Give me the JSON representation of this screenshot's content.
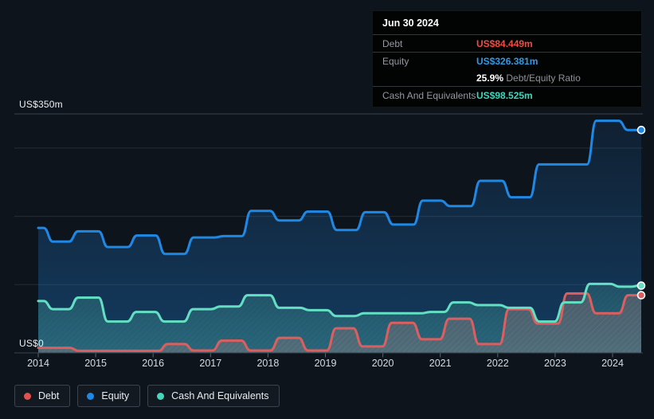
{
  "y_axis": {
    "top_label": "US$350m",
    "bottom_label": "US$0"
  },
  "x_axis": {
    "ticks": [
      "2014",
      "2015",
      "2016",
      "2017",
      "2018",
      "2019",
      "2020",
      "2021",
      "2022",
      "2023",
      "2024"
    ]
  },
  "tooltip": {
    "date": "Jun 30 2024",
    "debt_label": "Debt",
    "debt_value": "US$84.449m",
    "equity_label": "Equity",
    "equity_value": "US$326.381m",
    "ratio_value": "25.9%",
    "ratio_label": "Debt/Equity Ratio",
    "cash_label": "Cash And Equivalents",
    "cash_value": "US$98.525m"
  },
  "legend": {
    "items": [
      {
        "label": "Debt",
        "color": "#e0524e"
      },
      {
        "label": "Equity",
        "color": "#1e88e5"
      },
      {
        "label": "Cash And Equivalents",
        "color": "#44d7ba"
      }
    ]
  },
  "colors": {
    "background": "#0e141c",
    "debt_line": "#dd5e5e",
    "equity_line": "#1f88e5",
    "cash_line": "#63dfc3",
    "debt_value": "#ef4c44",
    "equity_value": "#2d9be8",
    "cash_value": "#3ed6bd",
    "gridline": "#242c35",
    "gridline_labeled": "#39424c",
    "axis_line": "#39424c"
  },
  "chart_data": {
    "type": "area",
    "unit": "US$ millions",
    "x_range": [
      2014,
      2024.5
    ],
    "ylim": [
      0,
      350
    ],
    "gridlines_m": [
      350,
      300,
      200,
      100
    ],
    "grid": true,
    "legend_position": "bottom-left",
    "as_of": "Jun 30 2024",
    "end_values": {
      "debt": 84.449,
      "equity": 326.381,
      "cash": 98.525,
      "debt_equity_ratio_pct": 25.9
    },
    "series": [
      {
        "name": "Equity",
        "points": [
          [
            2014,
            183
          ],
          [
            2014.35,
            163
          ],
          [
            2014.88,
            178
          ],
          [
            2015.38,
            155
          ],
          [
            2015.9,
            172
          ],
          [
            2016.35,
            145
          ],
          [
            2016.9,
            169
          ],
          [
            2017.4,
            171
          ],
          [
            2017.85,
            208
          ],
          [
            2018.38,
            194
          ],
          [
            2018.85,
            207
          ],
          [
            2019.38,
            180
          ],
          [
            2019.85,
            206
          ],
          [
            2020.35,
            188
          ],
          [
            2020.88,
            223
          ],
          [
            2021.3,
            215
          ],
          [
            2021.93,
            252
          ],
          [
            2022.38,
            228
          ],
          [
            2022.9,
            276
          ],
          [
            2023.4,
            276
          ],
          [
            2023.87,
            340
          ],
          [
            2024.5,
            326.381
          ]
        ]
      },
      {
        "name": "Debt",
        "points": [
          [
            2014,
            7.5
          ],
          [
            2014.35,
            7.5
          ],
          [
            2014.9,
            3
          ],
          [
            2015.5,
            3
          ],
          [
            2016,
            3
          ],
          [
            2016.35,
            13
          ],
          [
            2016.9,
            3.5
          ],
          [
            2017.33,
            18
          ],
          [
            2017.9,
            3.5
          ],
          [
            2018.35,
            22
          ],
          [
            2018.88,
            3.5
          ],
          [
            2019.33,
            36
          ],
          [
            2019.8,
            9.5
          ],
          [
            2020.35,
            44
          ],
          [
            2020.85,
            20
          ],
          [
            2021.3,
            50
          ],
          [
            2021.88,
            13
          ],
          [
            2022.35,
            64
          ],
          [
            2022.88,
            43
          ],
          [
            2023.38,
            87
          ],
          [
            2023.88,
            58
          ],
          [
            2024.5,
            84.449
          ]
        ]
      },
      {
        "name": "Cash And Equivalents",
        "points": [
          [
            2014,
            76
          ],
          [
            2014.35,
            64
          ],
          [
            2014.88,
            81
          ],
          [
            2015.38,
            46
          ],
          [
            2015.88,
            60
          ],
          [
            2016.35,
            46
          ],
          [
            2016.88,
            64
          ],
          [
            2017.3,
            68
          ],
          [
            2017.83,
            84.5
          ],
          [
            2018.4,
            66
          ],
          [
            2018.88,
            62.5
          ],
          [
            2019.33,
            54
          ],
          [
            2019.85,
            58
          ],
          [
            2020.5,
            58
          ],
          [
            2021,
            60
          ],
          [
            2021.3,
            74
          ],
          [
            2021.85,
            70
          ],
          [
            2022.38,
            66
          ],
          [
            2022.9,
            46
          ],
          [
            2023.25,
            74
          ],
          [
            2023.8,
            101
          ],
          [
            2024.28,
            97
          ],
          [
            2024.5,
            98.525
          ]
        ]
      }
    ]
  }
}
